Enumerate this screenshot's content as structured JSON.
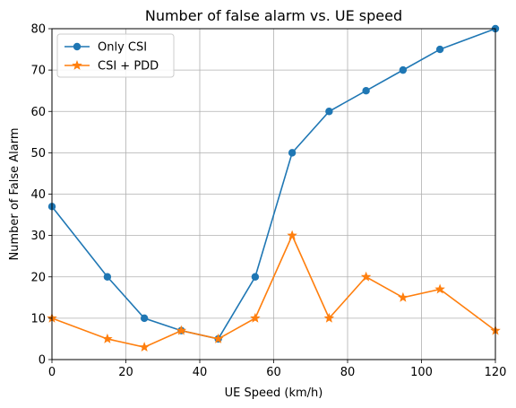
{
  "chart_data": {
    "type": "line",
    "title": "Number of false alarm vs. UE speed",
    "xlabel": "UE Speed (km/h)",
    "ylabel": "Number of False Alarm",
    "xlim": [
      0,
      120
    ],
    "ylim": [
      0,
      80
    ],
    "xticks": [
      0,
      20,
      40,
      60,
      80,
      100,
      120
    ],
    "yticks": [
      0,
      10,
      20,
      30,
      40,
      50,
      60,
      70,
      80
    ],
    "grid": true,
    "legend": "top-left",
    "x": [
      0,
      15,
      25,
      35,
      45,
      55,
      65,
      75,
      85,
      95,
      105,
      120
    ],
    "series": [
      {
        "name": "Only CSI",
        "color": "#1f77b4",
        "marker": "circle",
        "values": [
          37,
          20,
          10,
          7,
          5,
          20,
          50,
          60,
          65,
          70,
          75,
          80
        ]
      },
      {
        "name": "CSI + PDD",
        "color": "#ff7f0e",
        "marker": "star",
        "values": [
          10,
          5,
          3,
          7,
          5,
          10,
          30,
          10,
          20,
          15,
          17,
          7
        ]
      }
    ]
  }
}
